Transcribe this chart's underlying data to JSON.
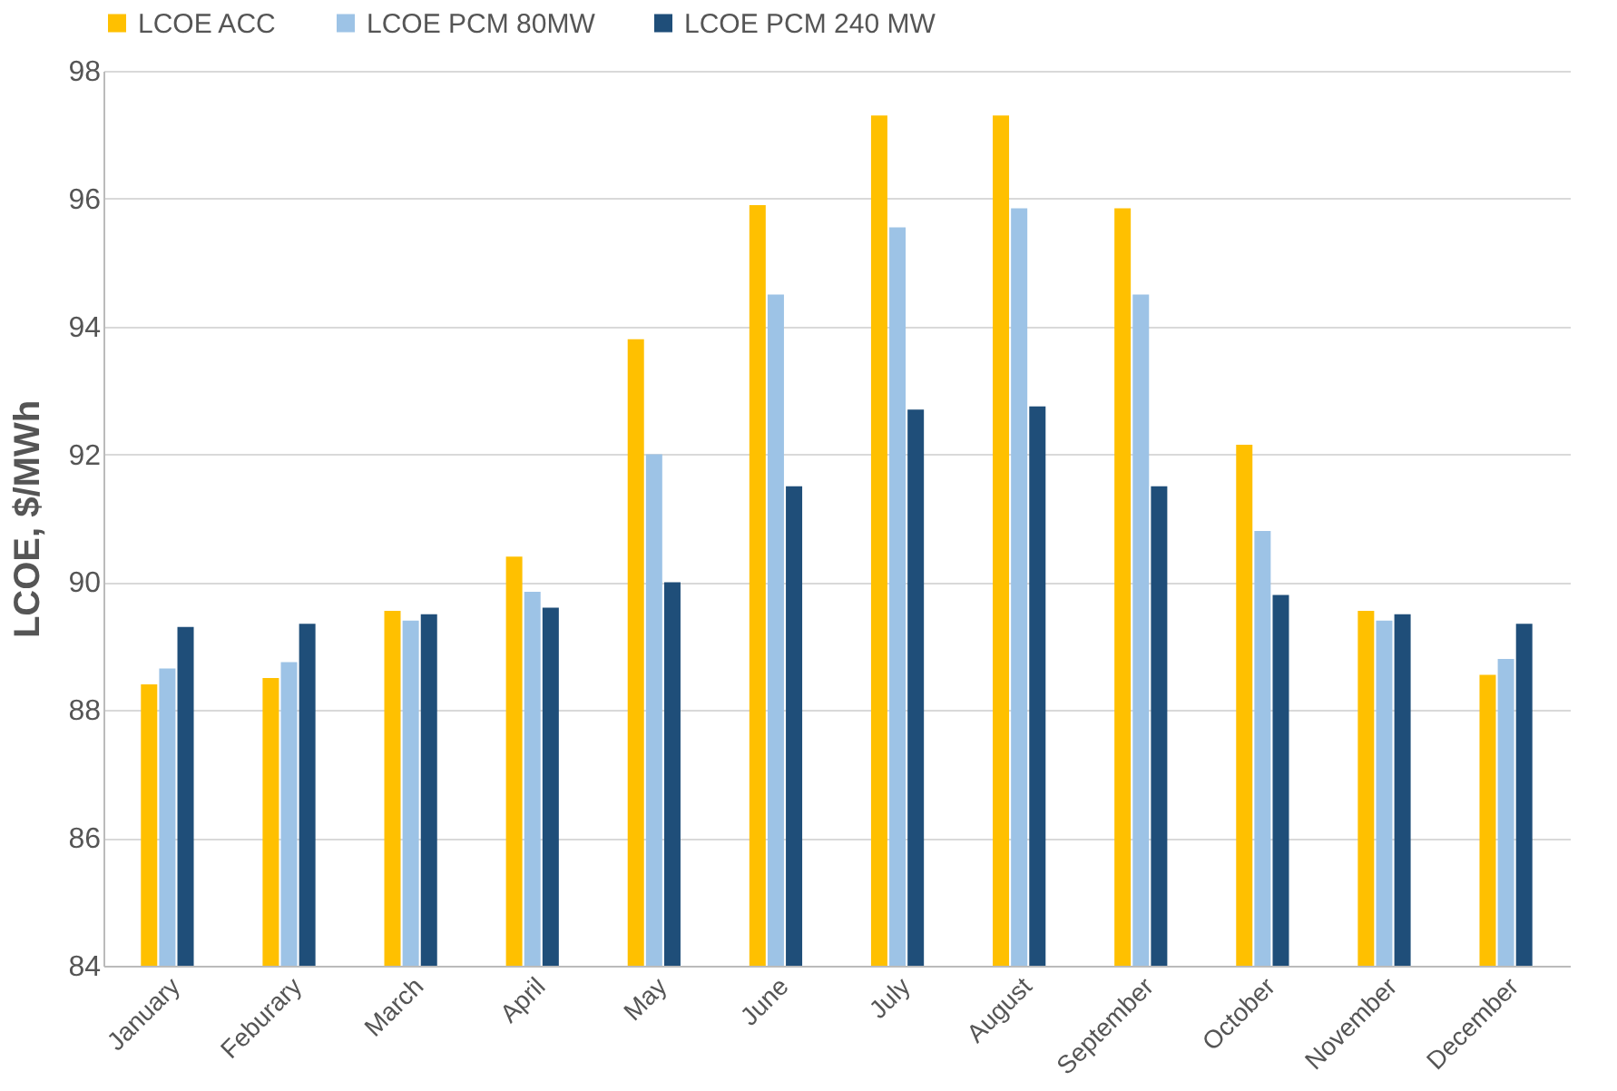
{
  "chart_data": {
    "type": "bar",
    "ylabel": "LCOE, $/MWh",
    "categories": [
      "January",
      "Feburary",
      "March",
      "April",
      "May",
      "June",
      "July",
      "August",
      "September",
      "October",
      "November",
      "December"
    ],
    "series": [
      {
        "name": "LCOE ACC",
        "color": "#ffc000",
        "values": [
          88.4,
          88.5,
          89.55,
          90.4,
          93.8,
          95.9,
          97.3,
          97.3,
          95.85,
          92.15,
          89.55,
          88.55
        ]
      },
      {
        "name": "LCOE PCM 80MW",
        "color": "#9dc3e6",
        "values": [
          88.65,
          88.75,
          89.4,
          89.85,
          92.0,
          94.5,
          95.55,
          95.85,
          94.5,
          90.8,
          89.4,
          88.8
        ]
      },
      {
        "name": "LCOE PCM 240 MW",
        "color": "#1f4e79",
        "values": [
          89.3,
          89.35,
          89.5,
          89.6,
          90.0,
          91.5,
          92.7,
          92.75,
          91.5,
          89.8,
          89.5,
          89.35
        ]
      }
    ],
    "ylim": [
      84,
      98
    ],
    "yticks": [
      84,
      86,
      88,
      90,
      92,
      94,
      96,
      98
    ],
    "grid": "y",
    "legend": "top"
  }
}
